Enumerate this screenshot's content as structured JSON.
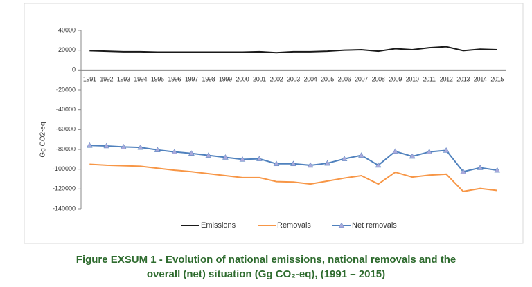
{
  "chart_data": {
    "type": "line",
    "y_label": "Gg CO2-eq",
    "categories": [
      "1991",
      "1992",
      "1993",
      "1994",
      "1995",
      "1996",
      "1997",
      "1998",
      "1999",
      "2000",
      "2001",
      "2002",
      "2003",
      "2004",
      "2005",
      "2006",
      "2007",
      "2008",
      "2009",
      "2010",
      "2011",
      "2012",
      "2013",
      "2014",
      "2015"
    ],
    "series": [
      {
        "name": "Emissions",
        "color": "#1a1a1a",
        "marker": false,
        "values": [
          19500,
          19000,
          18500,
          18500,
          18000,
          18000,
          18000,
          18000,
          18000,
          18000,
          18500,
          17500,
          18500,
          18500,
          19000,
          20000,
          20500,
          19000,
          21500,
          20500,
          22500,
          23500,
          19500,
          21000,
          20500
        ]
      },
      {
        "name": "Removals",
        "color": "#f79646",
        "marker": false,
        "values": [
          -95000,
          -96000,
          -96500,
          -97000,
          -99000,
          -101000,
          -102500,
          -104500,
          -106500,
          -108500,
          -108500,
          -112500,
          -113000,
          -115000,
          -112000,
          -109000,
          -106500,
          -115000,
          -103000,
          -108000,
          -106000,
          -105000,
          -122500,
          -119500,
          -121500
        ]
      },
      {
        "name": "Net removals",
        "color": "#4f81bd",
        "marker": true,
        "marker_color": "#a9a9dc",
        "values": [
          -76000,
          -76500,
          -77500,
          -78000,
          -80500,
          -82500,
          -84000,
          -86000,
          -88000,
          -90000,
          -89500,
          -94500,
          -94500,
          -96000,
          -94000,
          -89500,
          -86000,
          -96000,
          -82000,
          -87000,
          -82500,
          -81000,
          -102500,
          -98500,
          -101000
        ]
      }
    ],
    "ylim": [
      -140000,
      40000
    ],
    "yticks": [
      40000,
      20000,
      0,
      -20000,
      -40000,
      -60000,
      -80000,
      -100000,
      -120000,
      -140000
    ],
    "grid": false,
    "legend": "bottom",
    "caption": [
      "Figure EXSUM 1 - Evolution of national emissions, national removals and the",
      "overall (net) situation (Gg CO₂-eq), (1991 – 2015)"
    ]
  }
}
